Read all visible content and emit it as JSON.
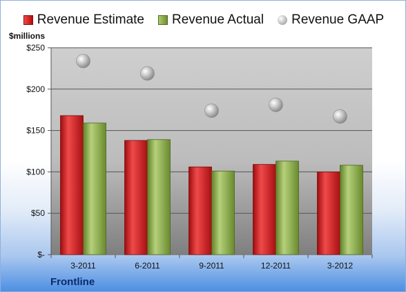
{
  "unit_label": "$millions",
  "company_label": "Frontline",
  "legend": [
    {
      "label": "Revenue Estimate",
      "icon": "red-square-icon"
    },
    {
      "label": "Revenue Actual",
      "icon": "green-square-icon"
    },
    {
      "label": "Revenue GAAP",
      "icon": "gray-circle-icon"
    }
  ],
  "colors": {
    "estimate": "#c8191b",
    "actual": "#86a543",
    "gaap": "#b4b4b4",
    "plot_top": "#cdcdcd",
    "plot_bottom": "#8a8a8a"
  },
  "chart_data": {
    "type": "bar",
    "title": "",
    "xlabel": "",
    "ylabel": "$millions",
    "categories": [
      "3-2011",
      "6-2011",
      "9-2011",
      "12-2011",
      "3-2012"
    ],
    "series": [
      {
        "name": "Revenue Estimate",
        "type": "bar",
        "values": [
          168,
          138,
          106,
          109,
          100
        ]
      },
      {
        "name": "Revenue Actual",
        "type": "bar",
        "values": [
          159,
          139,
          101,
          113,
          108
        ]
      },
      {
        "name": "Revenue GAAP",
        "type": "scatter",
        "values": [
          234,
          219,
          174,
          181,
          167
        ]
      }
    ],
    "ylim": [
      0,
      250
    ],
    "yticks": [
      0,
      50,
      100,
      150,
      200,
      250
    ],
    "ytick_labels": [
      "$-",
      "$50",
      "$100",
      "$150",
      "$200",
      "$250"
    ],
    "grid": true,
    "legend_position": "top"
  }
}
